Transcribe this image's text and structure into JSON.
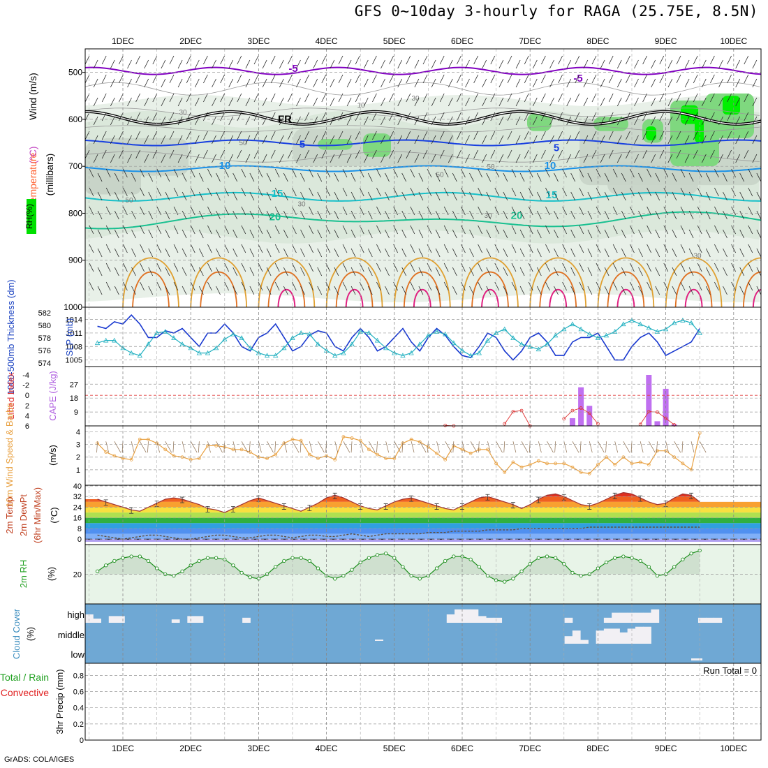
{
  "title": "GFS 0~10day 3-hourly for RAGA (25.75E, 8.5N)",
  "footer": "GrADS: COLA/IGES",
  "chart_data": [
    {
      "type": "contour",
      "name": "upper",
      "date_labels": [
        "1DEC",
        "2DEC",
        "3DEC",
        "4DEC",
        "5DEC",
        "6DEC",
        "7DEC",
        "8DEC",
        "9DEC",
        "10DEC"
      ],
      "ylabel_parts": [
        {
          "text": "Wind (m/s)",
          "color": "#000000"
        },
        {
          "text": "(°C)",
          "color": "#c040c0"
        },
        {
          "text": "Temperature",
          "color": "#ff6030"
        }
      ],
      "ylabel_axis": "(millibars)",
      "rh_label": "RH(%)",
      "ylim": [
        1000,
        450
      ],
      "yticks": [
        500,
        600,
        700,
        800,
        900,
        1000
      ],
      "temperature_contours": [
        {
          "label": "-5",
          "level": 497,
          "color": "#8000c0"
        },
        {
          "label": "FR",
          "level": 597,
          "color": "#000000"
        },
        {
          "label": "5",
          "level": 650,
          "color": "#1840e0"
        },
        {
          "label": "10",
          "level": 705,
          "color": "#1890e8"
        },
        {
          "label": "15",
          "level": 765,
          "color": "#18c0c8"
        },
        {
          "label": "20",
          "level": 815,
          "color": "#18c090"
        }
      ],
      "contour_labels": [
        "-5",
        "FR",
        "5",
        "10",
        "15",
        "20"
      ],
      "rh_labels": [
        "30",
        "10",
        "50",
        "30",
        "50",
        "50",
        "50",
        "30",
        "30",
        "30"
      ]
    },
    {
      "type": "line",
      "name": "slp_thickness",
      "ylabel_left": "1000-500mb Thickness (dm)",
      "ylabel_right": "SLP (mb)",
      "thickness_ticks": [
        582,
        580,
        578,
        576,
        574
      ],
      "slp_ticks": [
        1014,
        1011,
        1008,
        1005
      ],
      "series": [
        {
          "name": "SLP",
          "color": "#1838d0",
          "values": [
            1012.5,
            1012,
            1013.5,
            1013,
            1015,
            1013,
            1010,
            1010,
            1011.5,
            1011,
            1012,
            1010,
            1008,
            1011,
            1011,
            1013,
            1011,
            1008,
            1007,
            1010,
            1011,
            1013,
            1010,
            1007,
            1008,
            1010.5,
            1011.5,
            1011,
            1008,
            1007,
            1010,
            1012,
            1010,
            1007,
            1008,
            1010,
            1012,
            1009,
            1007,
            1010,
            1012,
            1010.5,
            1008,
            1006,
            1005.5,
            1008,
            1011,
            1010,
            1007,
            1005,
            1007,
            1010,
            1011,
            1009,
            1006,
            1006,
            1009,
            1010,
            1010,
            1011,
            1008,
            1005,
            1005,
            1008,
            1010,
            1011,
            1009,
            1006,
            1007,
            1008,
            1009,
            1012
          ]
        },
        {
          "name": "Thickness",
          "color": "#20b0c0",
          "values": [
            577.2,
            577.6,
            577.6,
            576.4,
            575.6,
            575.2,
            577,
            578.8,
            579,
            578,
            577,
            576.4,
            575.6,
            575.6,
            576.4,
            577.8,
            578.6,
            578,
            576.4,
            575.6,
            575.2,
            575.2,
            576.4,
            578,
            578.8,
            578.6,
            577,
            576,
            575.2,
            575.6,
            577,
            579,
            578.8,
            577.6,
            576.4,
            575.6,
            575.2,
            575.6,
            577,
            578.4,
            579,
            578.6,
            577.2,
            576,
            575.2,
            575.6,
            577.6,
            578.8,
            579.4,
            578,
            577,
            576.6,
            576.2,
            577,
            578.4,
            579.4,
            580.2,
            579.4,
            578.6,
            578,
            578.4,
            579,
            580.2,
            580.8,
            580.2,
            579.6,
            579,
            579.4,
            580.4,
            580.8,
            580.4,
            578.8
          ]
        }
      ]
    },
    {
      "type": "bar",
      "name": "cape_li",
      "ylabel_left": "Lifted Index",
      "ylabel_right": "CAPE (J/kg)",
      "li_ticks": [
        "-4",
        "-2",
        "0",
        "2",
        "4",
        "6"
      ],
      "cape_ticks": [
        "27",
        "18",
        "9"
      ],
      "cape_bars": [
        {
          "index": 57,
          "value": 5
        },
        {
          "index": 58,
          "value": 25
        },
        {
          "index": 59,
          "value": 13
        },
        {
          "index": 66,
          "value": 33
        },
        {
          "index": 67,
          "value": 3
        },
        {
          "index": 68,
          "value": 24
        },
        {
          "index": 69,
          "value": 1
        }
      ],
      "li_line": [
        {
          "index": 42,
          "value": 5.9
        },
        {
          "index": 43,
          "value": 6.0
        },
        {
          "index": 49,
          "value": 5.6
        },
        {
          "index": 50,
          "value": 3.2
        },
        {
          "index": 51,
          "value": 3.0
        },
        {
          "index": 52,
          "value": 6.0
        },
        {
          "index": 56,
          "value": 4.6
        },
        {
          "index": 57,
          "value": 3.0
        },
        {
          "index": 58,
          "value": 2.5
        },
        {
          "index": 59,
          "value": 3.5
        },
        {
          "index": 60,
          "value": 5.6
        },
        {
          "index": 65,
          "value": 5.7
        },
        {
          "index": 66,
          "value": 3.2
        },
        {
          "index": 67,
          "value": 3.3
        },
        {
          "index": 68,
          "value": 4.5
        },
        {
          "index": 69,
          "value": 5.8
        }
      ]
    },
    {
      "type": "line",
      "name": "wind10m",
      "ylabel": "10m Wind Speed & Barbs",
      "yunit": "(m/s)",
      "yticks": [
        1,
        2,
        3,
        4
      ],
      "ylim": [
        0,
        4.3
      ],
      "series": [
        {
          "name": "Speed",
          "color": "#e8a040",
          "values": [
            3.1,
            2.4,
            2.1,
            1.9,
            1.8,
            3.4,
            3.4,
            3.1,
            2.6,
            2.1,
            2.0,
            1.8,
            1.9,
            2.9,
            2.9,
            2.8,
            2.6,
            2.6,
            2.4,
            2.0,
            1.9,
            2.2,
            3.1,
            3.4,
            3.3,
            2.2,
            1.9,
            2.1,
            1.8,
            3.6,
            3.5,
            3.3,
            2.6,
            2.2,
            1.9,
            1.9,
            3.1,
            3.4,
            3.2,
            2.8,
            2.3,
            1.8,
            2.9,
            2.6,
            2.3,
            2.6,
            2.6,
            1.5,
            0.8,
            1.6,
            1.2,
            1.4,
            1.7,
            1.5,
            1.5,
            1.5,
            1.2,
            0.8,
            0.7,
            1.4,
            2.0,
            1.4,
            2.0,
            1.5,
            1.6,
            1.4,
            2.5,
            2.5,
            2.0,
            1.5,
            1.0,
            3.9
          ]
        }
      ]
    },
    {
      "type": "area",
      "name": "temp2m",
      "ylabel_lines": [
        "2m Temp",
        "2m DewPt",
        "(6hr Min/Max)"
      ],
      "yunit": "(°C)",
      "yticks": [
        0,
        8,
        16,
        24,
        32,
        40
      ],
      "ylim": [
        -2,
        40
      ],
      "series": [
        {
          "name": "Temp",
          "color": "#a03030",
          "values": [
            30,
            28,
            26,
            24,
            22,
            21,
            24,
            27,
            30,
            31,
            30,
            28,
            26,
            23,
            22,
            20,
            23,
            26,
            29,
            31,
            29,
            27,
            25,
            23,
            21,
            24,
            27,
            31,
            33,
            31,
            28,
            25,
            23,
            22,
            25,
            28,
            30,
            31,
            29,
            27,
            25,
            23,
            22,
            25,
            28,
            31,
            32,
            30,
            28,
            26,
            23,
            26,
            30,
            33,
            34,
            32,
            29,
            26,
            25,
            27,
            30,
            33,
            35,
            34,
            31,
            28,
            26,
            27,
            31,
            34,
            33,
            28
          ]
        },
        {
          "name": "DewPt",
          "color": "#605040",
          "values": [
            3,
            2,
            1,
            0,
            1,
            2,
            3,
            3,
            2,
            1,
            0,
            0,
            1,
            2,
            3,
            3,
            2,
            1,
            1,
            2,
            3,
            3,
            2,
            1,
            2,
            3,
            3,
            2,
            2,
            3,
            4,
            3,
            2,
            3,
            4,
            4,
            4,
            4,
            4,
            5,
            5,
            5,
            6,
            6,
            6,
            6,
            7,
            7,
            7,
            7,
            8,
            8,
            8,
            8,
            8,
            8,
            8,
            8,
            9,
            9,
            9,
            9,
            9,
            9,
            9,
            9,
            9,
            9,
            9,
            9,
            9,
            9
          ]
        }
      ]
    },
    {
      "type": "area",
      "name": "rh2m",
      "ylabel": "2m RH",
      "yunit": "(%)",
      "yticks": [
        20
      ],
      "ylim": [
        0,
        40
      ],
      "series": [
        {
          "name": "RH",
          "color": "#209020",
          "values": [
            22,
            26,
            29,
            31,
            32,
            32,
            29,
            24,
            20,
            19,
            22,
            26,
            29,
            31,
            31,
            30,
            26,
            21,
            18,
            17,
            20,
            25,
            29,
            31,
            31,
            29,
            24,
            19,
            17,
            19,
            23,
            28,
            31,
            33,
            34,
            31,
            25,
            19,
            17,
            19,
            24,
            29,
            32,
            32,
            30,
            25,
            19,
            16,
            15,
            17,
            22,
            27,
            31,
            32,
            31,
            27,
            21,
            19,
            20,
            24,
            28,
            31,
            32,
            31,
            29,
            25,
            19,
            20,
            25,
            30,
            34,
            36
          ]
        }
      ]
    },
    {
      "type": "bar",
      "name": "cloud",
      "ylabel": "Cloud Cover",
      "yunit": "(%)",
      "levels": [
        "high",
        "middle",
        "low"
      ],
      "series": [
        {
          "name": "high",
          "values": [
            50,
            25,
            0,
            40,
            40,
            0,
            0,
            0,
            0,
            0,
            0,
            20,
            0,
            40,
            40,
            0,
            0,
            0,
            0,
            0,
            30,
            0,
            0,
            0,
            0,
            0,
            0,
            0,
            0,
            0,
            0,
            0,
            0,
            0,
            0,
            0,
            0,
            0,
            0,
            0,
            0,
            0,
            0,
            0,
            0,
            0,
            50,
            80,
            80,
            80,
            40,
            30,
            30,
            0,
            0,
            0,
            0,
            0,
            0,
            0,
            0,
            30,
            0,
            0,
            0,
            0,
            30,
            60,
            60,
            60,
            60,
            60,
            80,
            0,
            0,
            0,
            0,
            0,
            30,
            30,
            30,
            0,
            0,
            0,
            0,
            0
          ]
        },
        {
          "name": "middle",
          "values": [
            0,
            0,
            0,
            0,
            0,
            0,
            0,
            0,
            0,
            0,
            0,
            0,
            0,
            0,
            0,
            0,
            0,
            0,
            0,
            0,
            0,
            0,
            0,
            0,
            0,
            0,
            0,
            0,
            0,
            0,
            0,
            0,
            0,
            0,
            0,
            0,
            0,
            0,
            0,
            0,
            0,
            0,
            0,
            0,
            0,
            0,
            0,
            0,
            0,
            0,
            0,
            0,
            0,
            0,
            0,
            0,
            0,
            0,
            0,
            0,
            0,
            40,
            70,
            20,
            0,
            70,
            80,
            80,
            60,
            80,
            90,
            90,
            0,
            0,
            0,
            0,
            0,
            0,
            0,
            0,
            0,
            0,
            0,
            0,
            0,
            0
          ]
        },
        {
          "name": "low",
          "values": [
            0,
            0,
            0,
            0,
            0,
            0,
            0,
            0,
            0,
            0,
            0,
            0,
            0,
            0,
            0,
            0,
            0,
            0,
            0,
            0,
            0,
            0,
            0,
            0,
            0,
            0,
            0,
            0,
            0,
            0,
            0,
            0,
            0,
            0,
            0,
            0,
            0,
            0,
            0,
            0,
            0,
            0,
            0,
            0,
            0,
            0,
            0,
            0,
            0,
            0,
            0,
            0,
            0,
            0,
            0,
            0,
            0,
            0,
            0,
            0,
            0,
            0,
            0,
            0,
            0,
            0,
            0,
            0,
            0,
            0,
            0,
            0,
            0,
            0,
            0,
            0,
            0,
            0,
            0,
            0,
            0,
            0,
            0,
            0,
            0,
            0
          ]
        }
      ]
    },
    {
      "type": "bar",
      "name": "precip",
      "ylabel_parts": [
        {
          "text": "Total / Rain",
          "color": "#20a020"
        },
        {
          "text": "Convective",
          "color": "#e02020"
        }
      ],
      "ylabel_axis": "3hr Precip (mm)",
      "yticks": [
        "0",
        "0.2",
        "0.4",
        "0.6",
        "0.8"
      ],
      "ylim": [
        0,
        0.95
      ],
      "run_total": "Run Total = 0",
      "values": []
    }
  ]
}
